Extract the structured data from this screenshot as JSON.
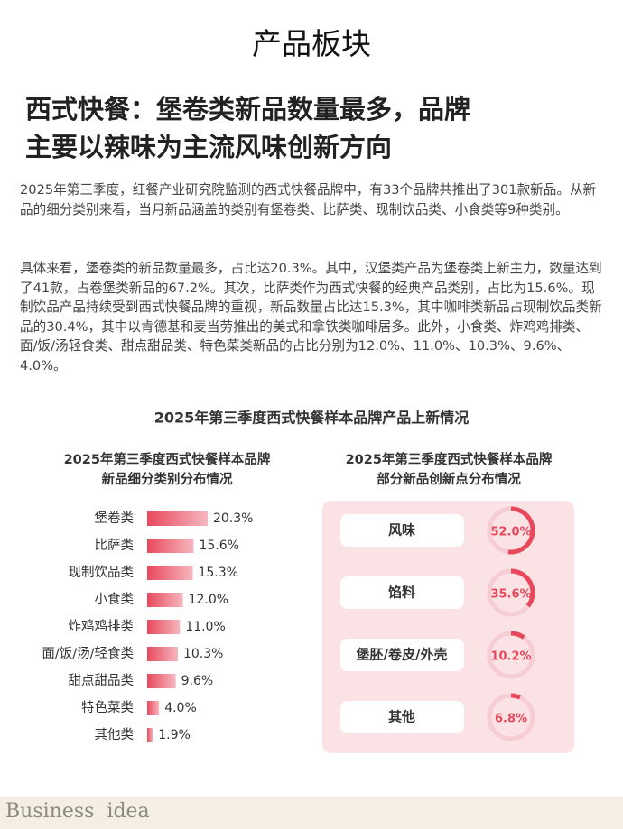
{
  "page_title": "产品板块",
  "headline": [
    "西式快餐：堡卷类新品数量最多，品牌",
    "主要以辣味为主流风味创新方向"
  ],
  "paragraphs": [
    "2025年第三季度，红餐产业研究院监测的西式快餐品牌中，有33个品牌共推出了301款新品。从新品的细分类别来看，当月新品涵盖的类别有堡卷类、比萨类、现制饮品类、小食类等9种类别。",
    "具体来看，堡卷类的新品数量最多，占比达20.3%。其中，汉堡类产品为堡卷类上新主力，数量达到了41款，占卷堡类新品的67.2%。其次，比萨类作为西式快餐的经典产品类别，占比为15.6%。现制饮品产品持续受到西式快餐品牌的重视，新品数量占比达15.3%，其中咖啡类新品占现制饮品类新品的30.4%，其中以肯德基和麦当劳推出的美式和拿铁类咖啡居多。此外，小食类、炸鸡鸡排类、面/饭/汤轻食类、甜点甜品类、特色菜类新品的占比分别为12.0%、11.0%、10.3%、9.6%、4.0%。"
  ],
  "section_title": "2025年第三季度西式快餐样本品牌产品上新情况",
  "chart_data": [
    {
      "type": "bar",
      "title": [
        "2025年第三季度西式快餐样本品牌",
        "新品细分类别分布情况"
      ],
      "categories": [
        "堡卷类",
        "比萨类",
        "现制饮品类",
        "小食类",
        "炸鸡鸡排类",
        "面/饭/汤/轻食类",
        "甜点甜品类",
        "特色菜类",
        "其他类"
      ],
      "values": [
        20.3,
        15.6,
        15.3,
        12.0,
        11.0,
        10.3,
        9.6,
        4.0,
        1.9
      ],
      "value_labels": [
        "20.3%",
        "15.6%",
        "15.3%",
        "12.0%",
        "11.0%",
        "10.3%",
        "9.6%",
        "4.0%",
        "1.9%"
      ],
      "color": "#e8485c"
    },
    {
      "type": "donut",
      "title": [
        "2025年第三季度西式快餐样本品牌",
        "部分新品创新点分布情况"
      ],
      "categories": [
        "风味",
        "馅料",
        "堡胚/卷皮/外壳",
        "其他"
      ],
      "values": [
        52.0,
        35.6,
        10.2,
        6.8
      ],
      "value_labels": [
        "52.0%",
        "35.6%",
        "10.2%",
        "6.8%"
      ],
      "color": "#e8485c"
    }
  ],
  "footer": "Business  idea"
}
